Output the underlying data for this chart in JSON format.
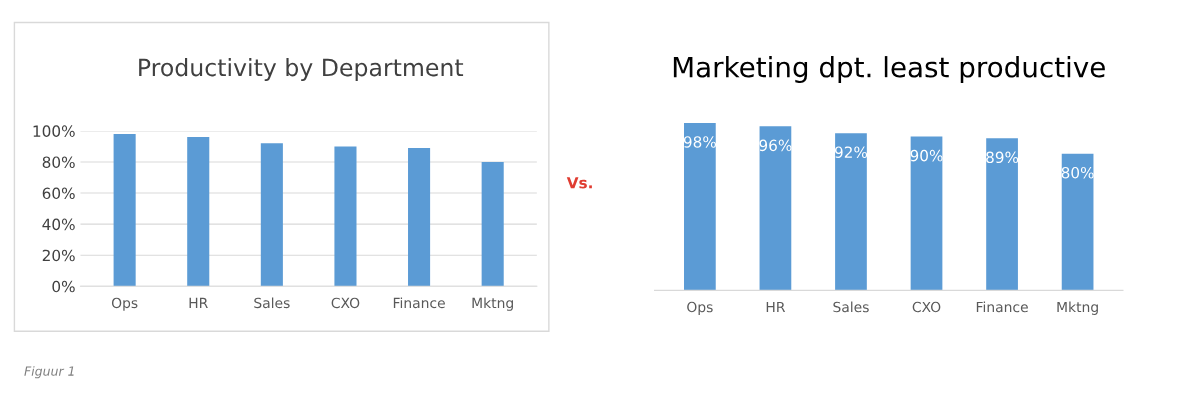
{
  "chart_data": [
    {
      "type": "bar",
      "title": "Productivity by Department",
      "categories": [
        "Ops",
        "HR",
        "Sales",
        "CXO",
        "Finance",
        "Mktng"
      ],
      "values": [
        98,
        96,
        92,
        90,
        89,
        80
      ],
      "color": "#5b9bd5",
      "ylim": [
        0,
        100
      ],
      "yticks": [
        {
          "value": 0,
          "label": "0%"
        },
        {
          "value": 20,
          "label": "20%"
        },
        {
          "value": 40,
          "label": "40%"
        },
        {
          "value": 60,
          "label": "60%"
        },
        {
          "value": 80,
          "label": "80%"
        },
        {
          "value": 100,
          "label": "100%"
        }
      ],
      "grid": "y",
      "legend": false,
      "annotations": [
        "Figuur 1"
      ]
    },
    {
      "type": "bar",
      "title": "Marketing dpt. least productive",
      "categories": [
        "Ops",
        "HR",
        "Sales",
        "CXO",
        "Finance",
        "Mktng"
      ],
      "values": [
        98,
        96,
        92,
        90,
        89,
        80
      ],
      "color": "#5b9bd5",
      "value_labels": [
        "98%",
        "96%",
        "92%",
        "90%",
        "89%",
        "80%"
      ],
      "tick_labels": "x",
      "grid": false,
      "legend": false,
      "annotations": [
        "Vs."
      ]
    }
  ]
}
